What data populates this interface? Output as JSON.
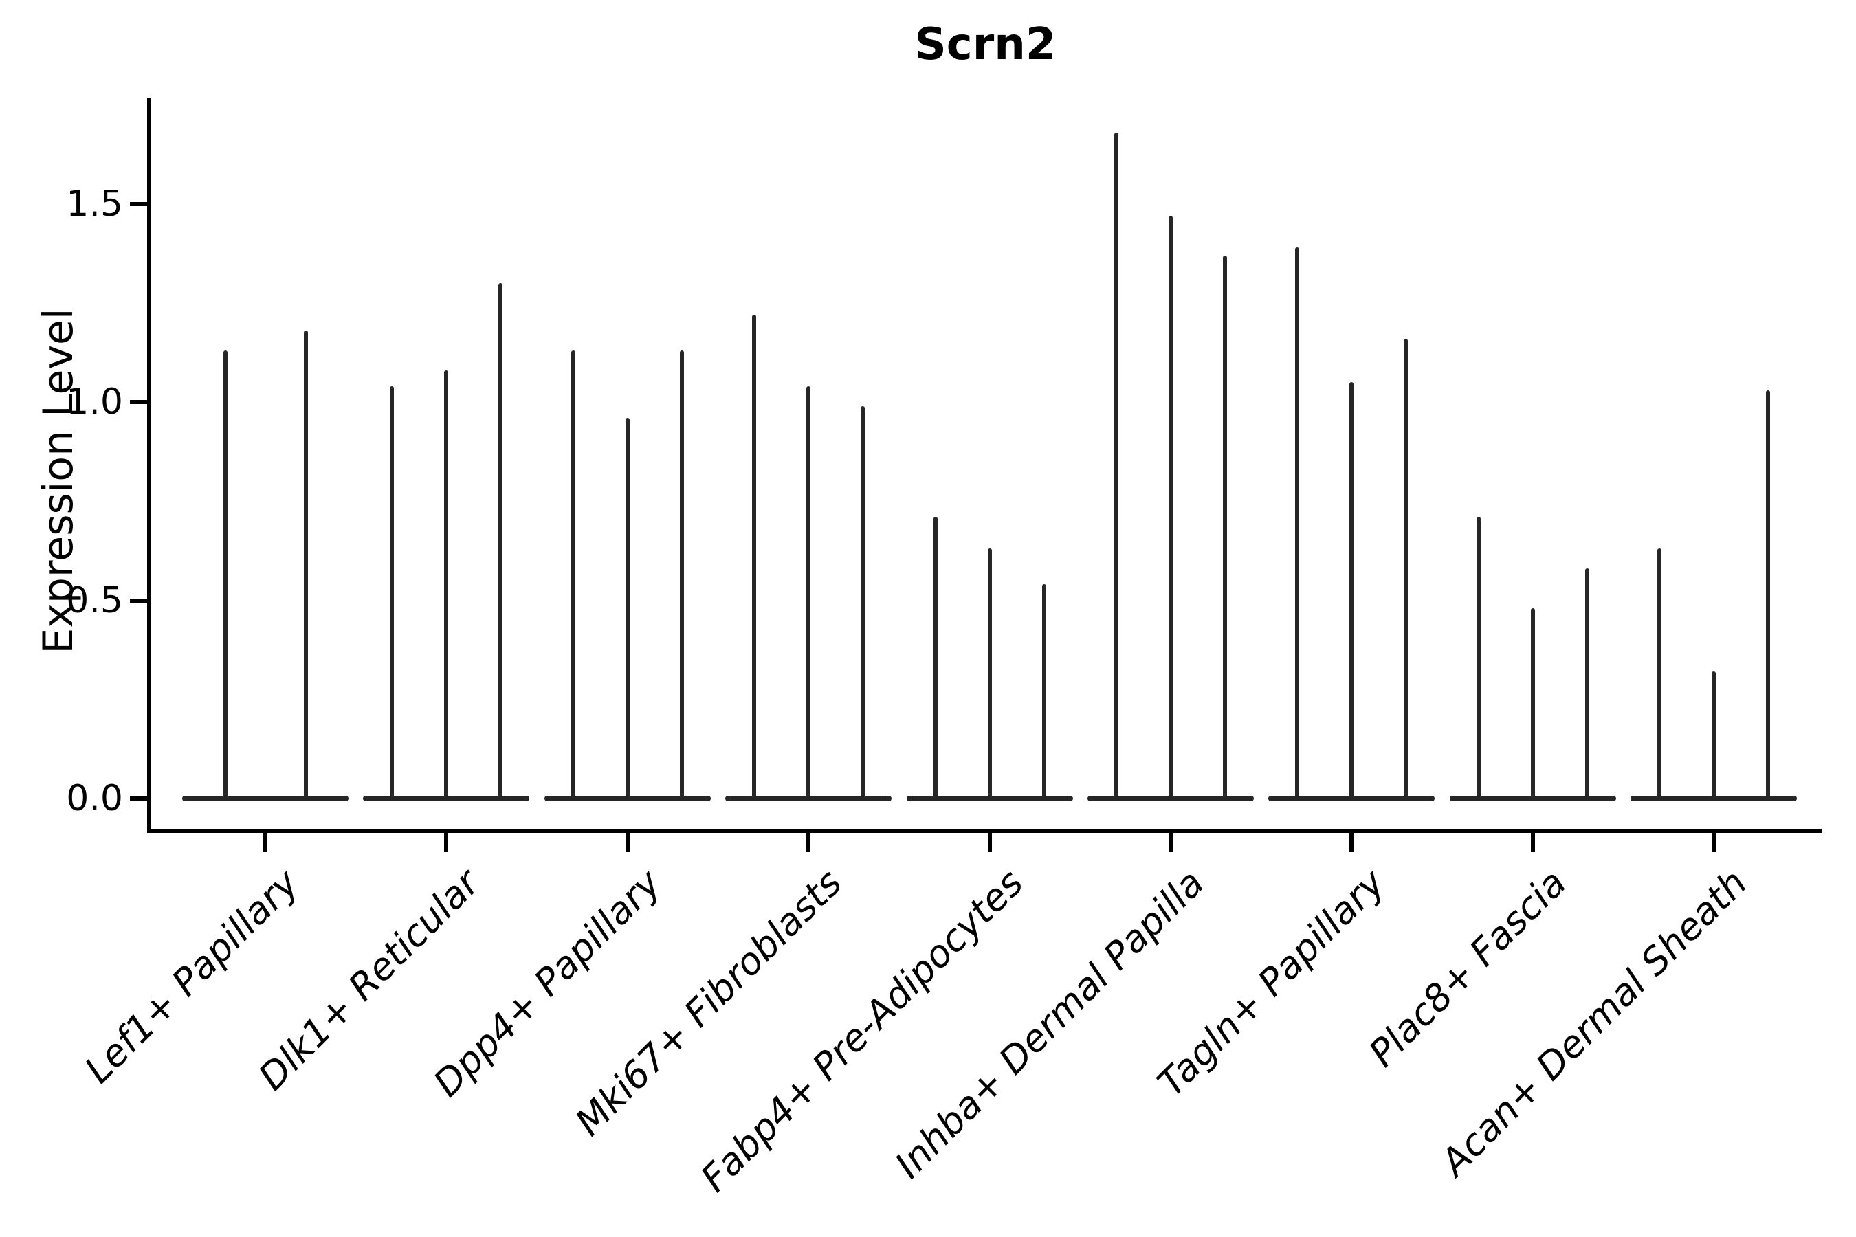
{
  "title": "Scrn2",
  "y_axis": {
    "label": "Expression Level",
    "tick_labels": [
      "0.0",
      "0.5",
      "1.0",
      "1.5"
    ],
    "tick_values": [
      0.0,
      0.5,
      1.0,
      1.5
    ]
  },
  "x_axis": {
    "categories": [
      "Lef1+ Papillary",
      "Dlk1+ Reticular",
      "Dpp4+ Papillary",
      "Mki67+ Fibroblasts",
      "Fabp4+ Pre-Adipocytes",
      "Inhba+ Dermal Papilla",
      "Tagln+ Papillary",
      "Plac8+ Fascia",
      "Acan+ Dermal Sheath"
    ]
  },
  "colors": {
    "violin": "#262626",
    "axis": "#000000",
    "text": "#000000",
    "background": "#ffffff"
  },
  "chart_data": {
    "type": "violin",
    "title": "Scrn2",
    "xlabel": "",
    "ylabel": "Expression Level",
    "ylim": [
      0,
      1.77
    ],
    "yticks": [
      0.0,
      0.5,
      1.0,
      1.5
    ],
    "grid": false,
    "legend": "none",
    "style": "narrow spike violins with wide flat base at 0; 2-3 violins per category",
    "categories": [
      "Lef1+ Papillary",
      "Dlk1+ Reticular",
      "Dpp4+ Papillary",
      "Mki67+ Fibroblasts",
      "Fabp4+ Pre-Adipocytes",
      "Inhba+ Dermal Papilla",
      "Tagln+ Papillary",
      "Plac8+ Fascia",
      "Acan+ Dermal Sheath"
    ],
    "series": [
      {
        "category": "Lef1+ Papillary",
        "violin_peaks": [
          1.13,
          1.18
        ]
      },
      {
        "category": "Dlk1+ Reticular",
        "violin_peaks": [
          1.04,
          1.08,
          1.3
        ]
      },
      {
        "category": "Dpp4+ Papillary",
        "violin_peaks": [
          1.13,
          0.96,
          1.13
        ]
      },
      {
        "category": "Mki67+ Fibroblasts",
        "violin_peaks": [
          1.22,
          1.04,
          0.99
        ]
      },
      {
        "category": "Fabp4+ Pre-Adipocytes",
        "violin_peaks": [
          0.71,
          0.63,
          0.54
        ]
      },
      {
        "category": "Inhba+ Dermal Papilla",
        "violin_peaks": [
          1.68,
          1.47,
          1.37
        ]
      },
      {
        "category": "Tagln+ Papillary",
        "violin_peaks": [
          1.39,
          1.05,
          1.16
        ]
      },
      {
        "category": "Plac8+ Fascia",
        "violin_peaks": [
          0.71,
          0.48,
          0.58
        ]
      },
      {
        "category": "Acan+ Dermal Sheath",
        "violin_peaks": [
          0.63,
          0.32,
          1.03
        ]
      }
    ],
    "violin_minimum": 0.0
  }
}
